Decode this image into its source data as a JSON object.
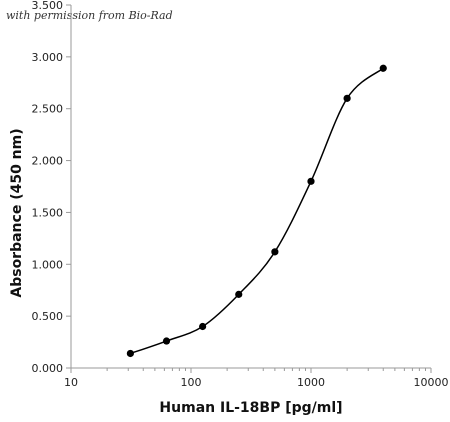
{
  "chart_data": {
    "type": "line",
    "credit": "with permission from Bio-Rad",
    "xlabel": "Human IL-18BP [pg/ml]",
    "ylabel": "Absorbance (450 nm)",
    "xscale": "log",
    "xlim": [
      10,
      10000
    ],
    "ylim": [
      0,
      3.5
    ],
    "x_ticks": [
      10,
      100,
      1000,
      10000
    ],
    "x_tick_labels": [
      "10",
      "100",
      "1000",
      "10000"
    ],
    "y_ticks": [
      0,
      0.5,
      1.0,
      1.5,
      2.0,
      2.5,
      3.0,
      3.5
    ],
    "y_tick_labels": [
      "0.000",
      "0.500",
      "1.000",
      "1.500",
      "2.000",
      "2.500",
      "3.000",
      "3.500"
    ],
    "grid": false,
    "legend": "none",
    "smooth": true,
    "x": [
      31.25,
      62.5,
      125,
      250,
      500,
      1000,
      2000,
      4000
    ],
    "y": [
      0.14,
      0.26,
      0.4,
      0.71,
      1.12,
      1.8,
      2.6,
      2.89
    ],
    "colors": {
      "line": "#000000",
      "marker": "#000000",
      "axis": "#9a9a9a"
    }
  }
}
